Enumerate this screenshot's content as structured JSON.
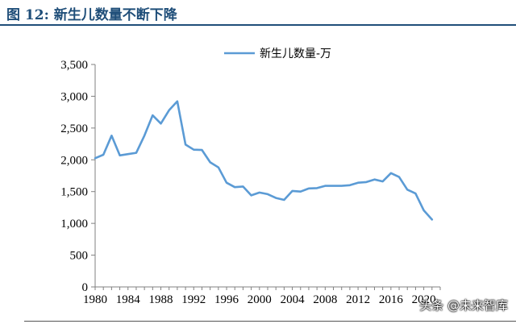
{
  "figure": {
    "title": "图 12:  新生儿数量不断下降"
  },
  "watermark": "头条 @未来智库",
  "chart_data": {
    "type": "line",
    "title": "",
    "xlabel": "",
    "ylabel": "",
    "ylim": [
      0,
      3500
    ],
    "xlim": [
      1980,
      2022
    ],
    "yticks": [
      0,
      500,
      1000,
      1500,
      2000,
      2500,
      3000,
      3500
    ],
    "ytick_labels": [
      "0",
      "500",
      "1,000",
      "1,500",
      "2,000",
      "2,500",
      "3,000",
      "3,500"
    ],
    "xticks": [
      1980,
      1984,
      1988,
      1992,
      1996,
      2000,
      2004,
      2008,
      2012,
      2016,
      2020
    ],
    "xtick_labels": [
      "1980",
      "1984",
      "1988",
      "1992",
      "1996",
      "2000",
      "2004",
      "2008",
      "2012",
      "2016",
      "2020"
    ],
    "grid": false,
    "legend": "top-center",
    "line_color": "#5b9bd5",
    "series": [
      {
        "name": "新生儿数量-万",
        "x": [
          1980,
          1981,
          1982,
          1983,
          1984,
          1985,
          1986,
          1987,
          1988,
          1989,
          1990,
          1991,
          1992,
          1993,
          1994,
          1995,
          1996,
          1997,
          1998,
          1999,
          2000,
          2001,
          2002,
          2003,
          2004,
          2005,
          2006,
          2007,
          2008,
          2009,
          2010,
          2011,
          2012,
          2013,
          2014,
          2015,
          2016,
          2017,
          2018,
          2019,
          2020,
          2021
        ],
        "values": [
          2025,
          2080,
          2380,
          2070,
          2090,
          2110,
          2380,
          2700,
          2570,
          2780,
          2920,
          2240,
          2160,
          2155,
          1960,
          1880,
          1640,
          1570,
          1580,
          1440,
          1485,
          1460,
          1400,
          1370,
          1510,
          1500,
          1550,
          1555,
          1590,
          1590,
          1590,
          1600,
          1640,
          1650,
          1690,
          1660,
          1790,
          1730,
          1530,
          1470,
          1205,
          1060
        ]
      }
    ]
  }
}
